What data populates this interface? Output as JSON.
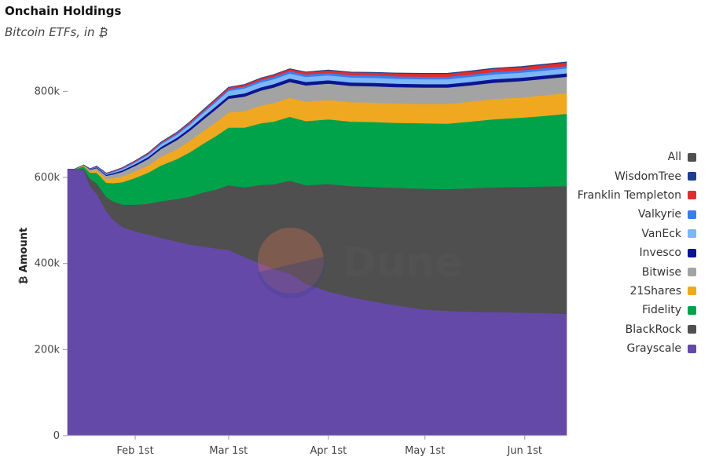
{
  "header": {
    "title": "Onchain Holdings",
    "subtitle": "Bitcoin ETFs, in ₿"
  },
  "watermark": {
    "text": "Dune"
  },
  "chart_data": {
    "type": "area",
    "stacked": true,
    "ylabel": "₿ Amount",
    "ylim": [
      0,
      870000
    ],
    "yticks": [
      0,
      200000,
      400000,
      600000,
      800000
    ],
    "ytick_labels": [
      "0",
      "200k",
      "400k",
      "600k",
      "800k"
    ],
    "x_range": [
      "2024-01-11",
      "2024-06-14"
    ],
    "xticks": [
      "2024-02-01",
      "2024-03-01",
      "2024-04-01",
      "2024-05-01",
      "2024-06-01"
    ],
    "xtick_labels": [
      "Feb 1st",
      "Mar 1st",
      "Apr 1st",
      "May 1st",
      "Jun 1st"
    ],
    "grid": false,
    "legend_position": "right",
    "x": [
      "2024-01-11",
      "2024-01-13",
      "2024-01-16",
      "2024-01-18",
      "2024-01-20",
      "2024-01-23",
      "2024-01-25",
      "2024-01-28",
      "2024-02-01",
      "2024-02-05",
      "2024-02-09",
      "2024-02-14",
      "2024-02-18",
      "2024-02-22",
      "2024-02-26",
      "2024-03-01",
      "2024-03-06",
      "2024-03-11",
      "2024-03-15",
      "2024-03-20",
      "2024-03-25",
      "2024-04-01",
      "2024-04-08",
      "2024-04-15",
      "2024-04-22",
      "2024-05-01",
      "2024-05-08",
      "2024-05-15",
      "2024-05-22",
      "2024-05-31",
      "2024-06-07",
      "2024-06-14"
    ],
    "series": [
      {
        "name": "Grayscale",
        "color": "#6549a8",
        "values": [
          619000,
          619000,
          617000,
          580000,
          562000,
          522000,
          503000,
          485000,
          475000,
          467000,
          460000,
          451000,
          444000,
          440000,
          435000,
          432000,
          415000,
          400000,
          388000,
          377000,
          353000,
          335000,
          322000,
          312000,
          303000,
          293000,
          290000,
          288000,
          287000,
          286000,
          285000,
          283000
        ]
      },
      {
        "name": "BlackRock",
        "color": "#4f4f4f",
        "values": [
          0,
          0,
          3000,
          17000,
          25000,
          33000,
          42000,
          52000,
          62000,
          72000,
          85000,
          99000,
          112000,
          125000,
          137000,
          150000,
          162000,
          183000,
          196000,
          216000,
          229000,
          250000,
          258000,
          266000,
          273000,
          281000,
          283000,
          287000,
          290000,
          292000,
          294000,
          297000
        ]
      },
      {
        "name": "Fidelity",
        "color": "#00a34a",
        "values": [
          0,
          0,
          6000,
          14000,
          24000,
          33000,
          42000,
          52000,
          62000,
          72000,
          83000,
          93000,
          103000,
          113000,
          124000,
          134000,
          139000,
          143000,
          146000,
          148000,
          149000,
          150000,
          150000,
          151000,
          151000,
          152000,
          152000,
          155000,
          158000,
          161000,
          164000,
          168000
        ]
      },
      {
        "name": "21Shares",
        "color": "#f0a820",
        "values": [
          0,
          0,
          2000,
          4000,
          6000,
          9000,
          11000,
          13000,
          15000,
          17000,
          20000,
          23000,
          26000,
          29000,
          32000,
          35000,
          38000,
          41000,
          43000,
          44000,
          45000,
          45000,
          45000,
          45000,
          45000,
          45000,
          46000,
          46000,
          47000,
          47000,
          48000,
          48000
        ]
      },
      {
        "name": "Bitwise",
        "color": "#a3a3a3",
        "values": [
          0,
          0,
          1000,
          3000,
          5000,
          7000,
          9000,
          11000,
          13000,
          15000,
          18000,
          21000,
          24000,
          27000,
          30000,
          32000,
          34000,
          35000,
          36000,
          37000,
          38000,
          38000,
          38000,
          38000,
          38000,
          38000,
          38000,
          38000,
          38000,
          38000,
          38000,
          38000
        ]
      },
      {
        "name": "Invesco",
        "color": "#0b1590",
        "values": [
          0,
          0,
          0,
          1000,
          2000,
          2500,
          3000,
          3500,
          4000,
          4500,
          5000,
          5500,
          6000,
          6500,
          7000,
          7000,
          7500,
          7500,
          8000,
          8000,
          8000,
          8000,
          8000,
          8000,
          8000,
          8000,
          8000,
          8000,
          8000,
          8000,
          8000,
          8000
        ]
      },
      {
        "name": "VanEck",
        "color": "#7eb6f6",
        "values": [
          0,
          0,
          0,
          500,
          1000,
          1500,
          2000,
          3000,
          4000,
          5000,
          6000,
          7000,
          8000,
          9000,
          10000,
          11000,
          11500,
          11500,
          11500,
          11500,
          11500,
          11500,
          11500,
          11500,
          11500,
          11500,
          11500,
          11500,
          11500,
          11500,
          11500,
          11500
        ]
      },
      {
        "name": "Valkyrie",
        "color": "#3b7cf0",
        "values": [
          0,
          0,
          0,
          500,
          1000,
          1200,
          1500,
          1800,
          2000,
          2300,
          2600,
          3000,
          3300,
          3600,
          4000,
          4300,
          4600,
          5000,
          5200,
          5500,
          5500,
          5600,
          5600,
          5600,
          5600,
          5600,
          5600,
          5600,
          5600,
          5600,
          5600,
          5600
        ]
      },
      {
        "name": "Franklin Templeton",
        "color": "#e02e2e",
        "values": [
          0,
          0,
          0,
          300,
          600,
          900,
          1200,
          1500,
          1800,
          2100,
          2400,
          2700,
          3000,
          3300,
          3600,
          3900,
          4200,
          4500,
          4800,
          5100,
          5400,
          5700,
          6000,
          6300,
          6600,
          6900,
          7000,
          7200,
          7400,
          7600,
          7800,
          8000
        ]
      },
      {
        "name": "WisdomTree",
        "color": "#1c3f8c",
        "values": [
          0,
          0,
          0,
          0,
          50,
          100,
          150,
          200,
          250,
          300,
          350,
          400,
          450,
          500,
          550,
          600,
          650,
          700,
          750,
          800,
          850,
          900,
          950,
          1000,
          1050,
          1100,
          1150,
          1200,
          1250,
          1300,
          1350,
          1400
        ]
      }
    ],
    "legend_entries": [
      {
        "name": "All",
        "color": "#4f4f4f"
      },
      {
        "name": "WisdomTree",
        "color": "#1c3f8c"
      },
      {
        "name": "Franklin Templeton",
        "color": "#e02e2e"
      },
      {
        "name": "Valkyrie",
        "color": "#3b7cf0"
      },
      {
        "name": "VanEck",
        "color": "#7eb6f6"
      },
      {
        "name": "Invesco",
        "color": "#0b1590"
      },
      {
        "name": "Bitwise",
        "color": "#a3a3a3"
      },
      {
        "name": "21Shares",
        "color": "#f0a820"
      },
      {
        "name": "Fidelity",
        "color": "#00a34a"
      },
      {
        "name": "BlackRock",
        "color": "#4f4f4f"
      },
      {
        "name": "Grayscale",
        "color": "#6549a8"
      }
    ]
  }
}
